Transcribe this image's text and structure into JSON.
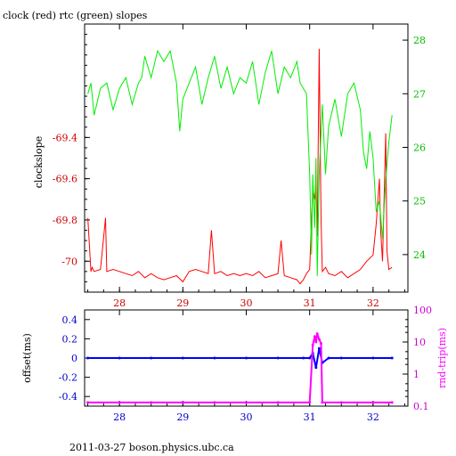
{
  "footer": "2011-03-27 boson.physics.ubc.ca",
  "colors": {
    "red": "#ff0000",
    "darkred": "#cc0000",
    "green": "#00ee00",
    "darkgreen": "#00bb00",
    "blue": "#0000ff",
    "darkblue": "#0000cc",
    "magenta": "#ff00ff",
    "darkmagenta": "#cc00cc",
    "axis": "#000000"
  },
  "chart_data": [
    {
      "type": "line",
      "title": "clock (red) rtc (green) slopes",
      "ylabel": "clockslope",
      "xlim": [
        27.45,
        32.55
      ],
      "ylim": [
        -70.15,
        -68.85
      ],
      "y2lim": [
        23.3,
        28.3
      ],
      "x_ticks": [
        "28",
        "29",
        "30",
        "31",
        "32"
      ],
      "y_ticks": [
        "-69.4",
        "-69.6",
        "-69.8",
        "-70"
      ],
      "y2_ticks": [
        "24",
        "25",
        "26",
        "27",
        "28"
      ],
      "grid": false,
      "series": [
        {
          "name": "clock",
          "axis": "left",
          "x": [
            27.5,
            27.55,
            27.57,
            27.6,
            27.7,
            27.78,
            27.8,
            27.9,
            28.0,
            28.1,
            28.2,
            28.3,
            28.4,
            28.5,
            28.6,
            28.7,
            28.8,
            28.9,
            29.0,
            29.1,
            29.2,
            29.3,
            29.4,
            29.45,
            29.5,
            29.6,
            29.7,
            29.8,
            29.9,
            30.0,
            30.1,
            30.2,
            30.3,
            30.4,
            30.5,
            30.55,
            30.6,
            30.7,
            30.8,
            30.85,
            30.9,
            30.95,
            31.0,
            31.02,
            31.05,
            31.08,
            31.1,
            31.12,
            31.15,
            31.18,
            31.2,
            31.25,
            31.3,
            31.4,
            31.5,
            31.6,
            31.7,
            31.8,
            31.9,
            32.0,
            32.05,
            32.1,
            32.12,
            32.15,
            32.2,
            32.22,
            32.25,
            32.3
          ],
          "y": [
            -69.79,
            -70.05,
            -70.03,
            -70.05,
            -70.04,
            -69.79,
            -70.05,
            -70.04,
            -70.05,
            -70.06,
            -70.07,
            -70.05,
            -70.08,
            -70.06,
            -70.08,
            -70.09,
            -70.08,
            -70.07,
            -70.1,
            -70.05,
            -70.04,
            -70.05,
            -70.06,
            -69.85,
            -70.06,
            -70.05,
            -70.07,
            -70.06,
            -70.07,
            -70.06,
            -70.07,
            -70.05,
            -70.08,
            -70.07,
            -70.06,
            -69.9,
            -70.07,
            -70.08,
            -70.09,
            -70.11,
            -70.09,
            -70.06,
            -70.04,
            -69.88,
            -69.65,
            -69.7,
            -69.6,
            -69.88,
            -68.97,
            -69.8,
            -70.05,
            -70.03,
            -70.06,
            -70.07,
            -70.05,
            -70.08,
            -70.06,
            -70.04,
            -70.0,
            -69.97,
            -69.82,
            -69.6,
            -69.85,
            -70.0,
            -69.38,
            -69.95,
            -70.04,
            -70.03
          ]
        },
        {
          "name": "rtc",
          "axis": "right",
          "x": [
            27.5,
            27.55,
            27.6,
            27.7,
            27.8,
            27.9,
            28.0,
            28.1,
            28.2,
            28.3,
            28.35,
            28.4,
            28.5,
            28.6,
            28.7,
            28.8,
            28.9,
            28.95,
            29.0,
            29.1,
            29.2,
            29.3,
            29.4,
            29.5,
            29.6,
            29.7,
            29.8,
            29.9,
            30.0,
            30.1,
            30.2,
            30.3,
            30.4,
            30.5,
            30.6,
            30.7,
            30.8,
            30.85,
            30.9,
            30.95,
            31.0,
            31.03,
            31.05,
            31.08,
            31.1,
            31.12,
            31.15,
            31.2,
            31.25,
            31.3,
            31.4,
            31.5,
            31.6,
            31.7,
            31.8,
            31.85,
            31.9,
            31.95,
            32.0,
            32.05,
            32.1,
            32.15,
            32.2,
            32.25,
            32.3
          ],
          "y": [
            27.0,
            27.2,
            26.6,
            27.1,
            27.2,
            26.7,
            27.1,
            27.3,
            26.8,
            27.2,
            27.3,
            27.7,
            27.3,
            27.8,
            27.6,
            27.8,
            27.2,
            26.3,
            26.9,
            27.2,
            27.5,
            26.8,
            27.3,
            27.7,
            27.1,
            27.5,
            27.0,
            27.3,
            27.2,
            27.6,
            26.8,
            27.4,
            27.8,
            27.0,
            27.5,
            27.3,
            27.6,
            27.2,
            27.1,
            27.0,
            25.5,
            24.0,
            25.5,
            24.5,
            25.8,
            23.6,
            25.5,
            26.8,
            25.5,
            26.4,
            26.9,
            26.2,
            27.0,
            27.2,
            26.7,
            25.9,
            25.6,
            26.3,
            25.8,
            24.8,
            25.0,
            24.3,
            25.4,
            26.1,
            26.6
          ]
        }
      ]
    },
    {
      "type": "scatter",
      "ylabel": "offset(ms)",
      "y2label": "rnd-trip(ms)",
      "xlim": [
        27.45,
        32.55
      ],
      "ylim": [
        -0.5,
        0.5
      ],
      "y2lim_log": [
        0.1,
        100
      ],
      "x_ticks": [
        "28",
        "29",
        "30",
        "31",
        "32"
      ],
      "y_ticks": [
        "0.4",
        "0.2",
        "0",
        "-0.2",
        "-0.4"
      ],
      "y2_ticks": [
        "100",
        "10",
        "1",
        "0.1"
      ],
      "grid": false,
      "series": [
        {
          "name": "offset",
          "axis": "left",
          "x": [
            27.5,
            28.0,
            28.5,
            29.0,
            29.5,
            30.0,
            30.5,
            30.9,
            31.0,
            31.05,
            31.1,
            31.15,
            31.2,
            31.3,
            31.5,
            32.0,
            32.3
          ],
          "y": [
            0.0,
            0.0,
            0.0,
            0.0,
            0.0,
            0.0,
            0.0,
            0.0,
            0.0,
            0.05,
            -0.1,
            0.1,
            -0.05,
            0.0,
            0.0,
            0.0,
            0.0
          ]
        },
        {
          "name": "rnd-trip",
          "axis": "right",
          "x": [
            27.5,
            28.0,
            28.5,
            29.0,
            29.5,
            30.0,
            30.5,
            31.0,
            31.05,
            31.08,
            31.1,
            31.12,
            31.15,
            31.18,
            31.2,
            31.5,
            32.0,
            32.3
          ],
          "y": [
            0.13,
            0.13,
            0.13,
            0.13,
            0.13,
            0.13,
            0.13,
            0.13,
            8,
            15,
            10,
            18,
            12,
            9,
            0.13,
            0.13,
            0.13,
            0.13
          ]
        }
      ]
    }
  ]
}
